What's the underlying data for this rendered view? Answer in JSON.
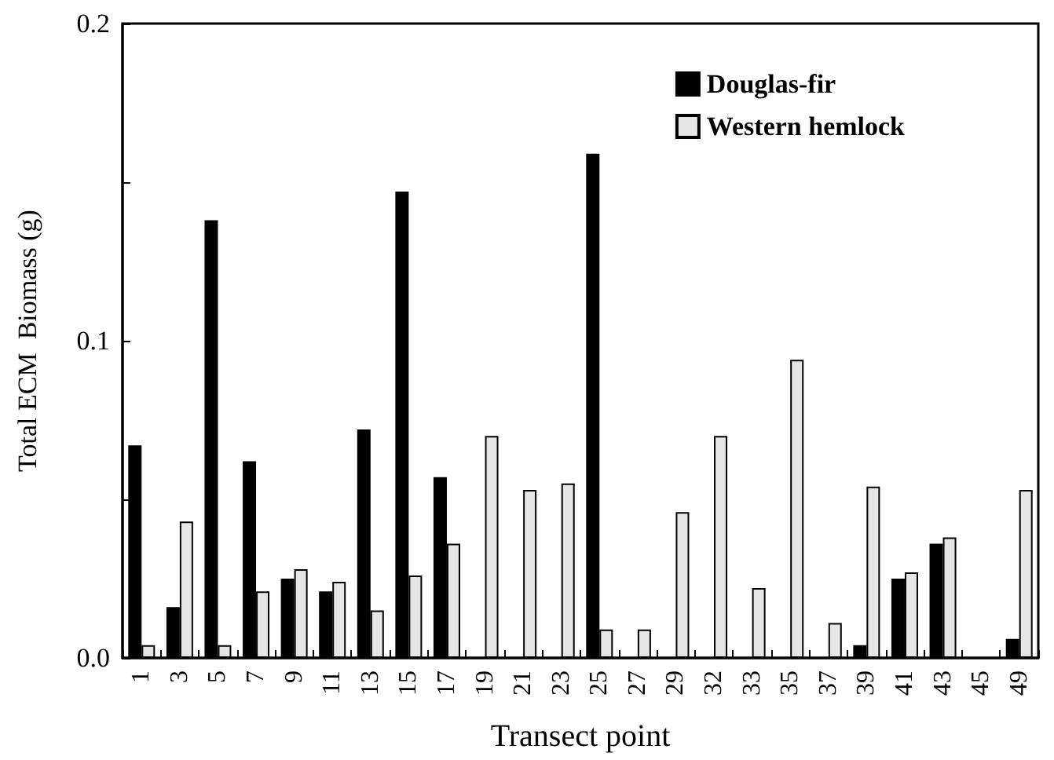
{
  "chart_data": {
    "type": "bar",
    "xlabel": "Transect point",
    "ylabel": "Total ECM  Biomass (g)",
    "categories": [
      "1",
      "3",
      "5",
      "7",
      "9",
      "11",
      "13",
      "15",
      "17",
      "19",
      "21",
      "23",
      "25",
      "27",
      "29",
      "32",
      "33",
      "35",
      "37",
      "39",
      "41",
      "43",
      "45",
      "49"
    ],
    "series": [
      {
        "name": "Douglas-fir",
        "color": "#000000",
        "values": [
          0.067,
          0.016,
          0.138,
          0.062,
          0.025,
          0.021,
          0.072,
          0.147,
          0.057,
          0,
          0,
          0,
          0.159,
          0,
          0,
          0,
          0,
          0,
          0,
          0.004,
          0.025,
          0.036,
          0,
          0.006
        ]
      },
      {
        "name": "Western hemlock",
        "color": "#e6e6e6",
        "values": [
          0.004,
          0.043,
          0.004,
          0.021,
          0.028,
          0.024,
          0.015,
          0.026,
          0.036,
          0.07,
          0.053,
          0.055,
          0.009,
          0.009,
          0.046,
          0.07,
          0.022,
          0.094,
          0.011,
          0.054,
          0.027,
          0.038,
          0,
          0.053
        ]
      }
    ],
    "ylim": [
      0,
      0.2
    ],
    "yticks": [
      {
        "value": 0,
        "label": "0.0"
      },
      {
        "value": 0.05,
        "label": null
      },
      {
        "value": 0.1,
        "label": "0.1"
      },
      {
        "value": 0.15,
        "label": null
      },
      {
        "value": 0.2,
        "label": "0.2"
      }
    ],
    "legend": "top right",
    "grid": false
  }
}
